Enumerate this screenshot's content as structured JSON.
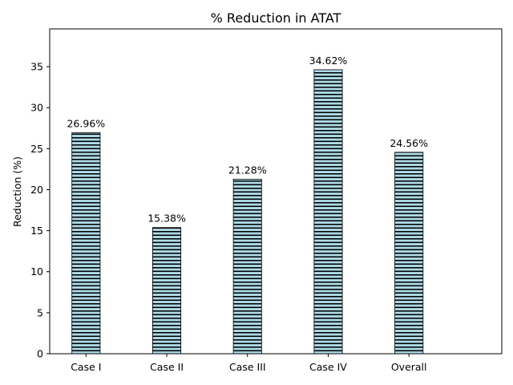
{
  "chart_data": {
    "type": "bar",
    "title": "% Reduction in ATAT",
    "xlabel": "",
    "ylabel": "Reduction (%)",
    "categories": [
      "Case I",
      "Case II",
      "Case III",
      "Case IV",
      "Overall"
    ],
    "values": [
      26.96,
      15.38,
      21.28,
      34.62,
      24.56
    ],
    "data_labels": [
      "26.96%",
      "15.38%",
      "21.28%",
      "34.62%",
      "24.56%"
    ],
    "ylim": [
      0,
      39.6
    ],
    "yticks": [
      0,
      5,
      10,
      15,
      20,
      25,
      30,
      35
    ],
    "grid": false,
    "legend": "none",
    "bar_fill": "#add8e6",
    "bar_hatch": "horizontal lines",
    "bar_edge": "#000000"
  }
}
